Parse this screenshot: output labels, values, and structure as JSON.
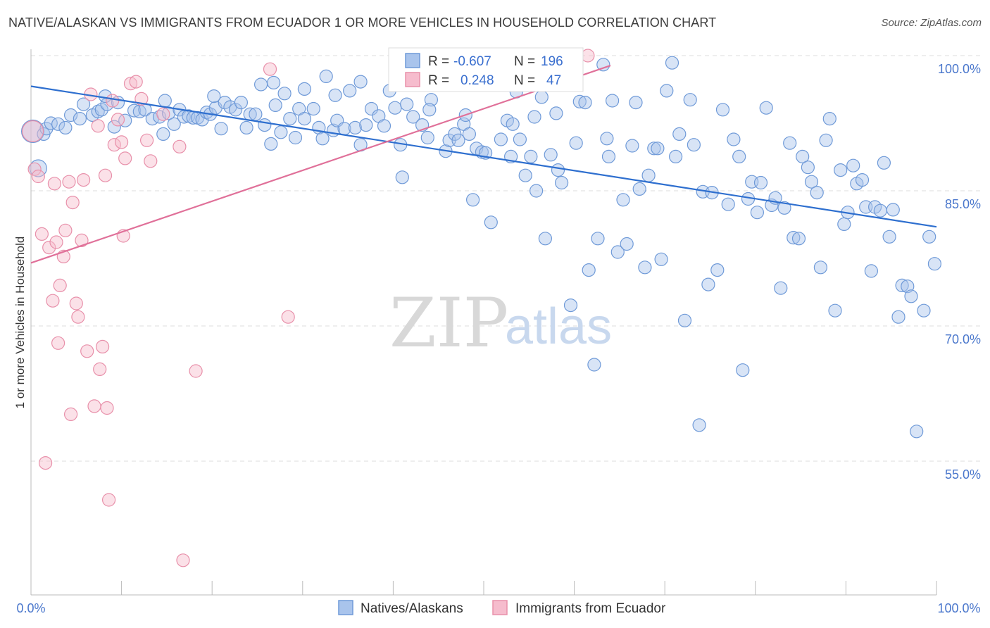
{
  "header": {
    "title": "NATIVE/ALASKAN VS IMMIGRANTS FROM ECUADOR 1 OR MORE VEHICLES IN HOUSEHOLD CORRELATION CHART",
    "source": "Source: ZipAtlas.com"
  },
  "watermark": {
    "zip": "ZIP",
    "atlas": "atlas"
  },
  "stats_legend": {
    "rows": [
      {
        "r_label": "R =",
        "r_value": "-0.607",
        "n_label": "N =",
        "n_value": "196"
      },
      {
        "r_label": "R =",
        "r_value": "0.248",
        "n_label": "N =",
        "n_value": "47"
      }
    ]
  },
  "colors": {
    "blue_fill": "#a9c4ec",
    "blue_stroke": "#6f9ad8",
    "blue_line": "#2e6fcf",
    "pink_fill": "#f6bccd",
    "pink_stroke": "#e890aa",
    "pink_line": "#e07099",
    "grid": "#dddddd",
    "tick_label": "#4a77cc"
  },
  "chart_data": {
    "type": "scatter",
    "title": "NATIVE/ALASKAN VS IMMIGRANTS FROM ECUADOR 1 OR MORE VEHICLES IN HOUSEHOLD CORRELATION CHART",
    "xlabel": "",
    "ylabel": "1 or more Vehicles in Household",
    "xlim": [
      0,
      100
    ],
    "ylim": [
      40,
      102
    ],
    "x_tick_labels": [
      "0.0%",
      "100.0%"
    ],
    "y_ticks": [
      55,
      70,
      85,
      100
    ],
    "y_tick_labels": [
      "55.0%",
      "70.0%",
      "85.0%",
      "100.0%"
    ],
    "grid": true,
    "legend": [
      "Natives/Alaskans",
      "Immigrants from Ecuador"
    ],
    "series": [
      {
        "name": "Natives/Alaskans",
        "color": "#a9c4ec",
        "trendline": {
          "x": [
            0,
            100
          ],
          "y": [
            96.6,
            81.0
          ]
        },
        "points": [
          [
            0.2,
            91.6
          ],
          [
            0.8,
            87.5
          ],
          [
            1.4,
            91.3
          ],
          [
            1.7,
            91.9
          ],
          [
            2.2,
            92.5
          ],
          [
            3.0,
            92.4
          ],
          [
            3.8,
            92.0
          ],
          [
            4.4,
            93.4
          ],
          [
            5.4,
            93.0
          ],
          [
            5.8,
            94.6
          ],
          [
            6.8,
            93.4
          ],
          [
            7.4,
            93.8
          ],
          [
            7.8,
            94.0
          ],
          [
            8.4,
            94.6
          ],
          [
            9.2,
            92.1
          ],
          [
            9.6,
            94.8
          ],
          [
            10.4,
            92.8
          ],
          [
            11.4,
            93.9
          ],
          [
            12.0,
            93.8
          ],
          [
            12.6,
            94.0
          ],
          [
            13.4,
            93.0
          ],
          [
            14.2,
            93.2
          ],
          [
            14.6,
            91.3
          ],
          [
            15.2,
            93.6
          ],
          [
            15.8,
            92.4
          ],
          [
            16.4,
            94.0
          ],
          [
            16.9,
            93.2
          ],
          [
            17.4,
            93.3
          ],
          [
            17.9,
            93.1
          ],
          [
            18.4,
            93.1
          ],
          [
            18.9,
            92.9
          ],
          [
            19.4,
            93.7
          ],
          [
            19.8,
            93.5
          ],
          [
            20.4,
            94.2
          ],
          [
            21.0,
            91.9
          ],
          [
            21.4,
            94.8
          ],
          [
            22.0,
            94.3
          ],
          [
            22.6,
            94.0
          ],
          [
            23.2,
            94.8
          ],
          [
            23.8,
            92.0
          ],
          [
            24.2,
            93.5
          ],
          [
            24.8,
            93.5
          ],
          [
            25.4,
            96.8
          ],
          [
            25.8,
            92.3
          ],
          [
            26.5,
            90.2
          ],
          [
            27.0,
            94.5
          ],
          [
            27.6,
            91.5
          ],
          [
            28.0,
            95.8
          ],
          [
            28.6,
            93.0
          ],
          [
            29.2,
            90.9
          ],
          [
            29.6,
            94.1
          ],
          [
            30.2,
            93.0
          ],
          [
            31.2,
            94.1
          ],
          [
            31.8,
            92.0
          ],
          [
            32.2,
            90.8
          ],
          [
            32.6,
            97.7
          ],
          [
            33.4,
            91.7
          ],
          [
            33.8,
            92.8
          ],
          [
            34.6,
            91.9
          ],
          [
            35.2,
            96.1
          ],
          [
            35.8,
            92.0
          ],
          [
            36.4,
            90.1
          ],
          [
            37.0,
            92.3
          ],
          [
            37.6,
            94.1
          ],
          [
            38.4,
            93.3
          ],
          [
            39.0,
            92.2
          ],
          [
            39.6,
            96.1
          ],
          [
            40.2,
            94.2
          ],
          [
            40.8,
            90.1
          ],
          [
            41.0,
            86.5
          ],
          [
            41.5,
            94.6
          ],
          [
            42.2,
            93.2
          ],
          [
            42.8,
            96.9
          ],
          [
            43.2,
            92.3
          ],
          [
            43.8,
            90.9
          ],
          [
            44.2,
            95.1
          ],
          [
            44.8,
            97.3
          ],
          [
            45.2,
            96.9
          ],
          [
            45.8,
            89.4
          ],
          [
            46.2,
            90.6
          ],
          [
            46.8,
            91.3
          ],
          [
            47.2,
            90.6
          ],
          [
            47.8,
            92.4
          ],
          [
            48.4,
            91.3
          ],
          [
            48.8,
            84.0
          ],
          [
            49.2,
            89.7
          ],
          [
            49.8,
            89.3
          ],
          [
            50.2,
            89.2
          ],
          [
            50.8,
            81.5
          ],
          [
            51.4,
            98.0
          ],
          [
            51.9,
            90.7
          ],
          [
            52.6,
            92.8
          ],
          [
            53.2,
            92.4
          ],
          [
            53.6,
            96.0
          ],
          [
            54.0,
            90.7
          ],
          [
            54.6,
            86.7
          ],
          [
            55.2,
            88.8
          ],
          [
            55.8,
            85.0
          ],
          [
            56.4,
            95.4
          ],
          [
            56.8,
            79.7
          ],
          [
            57.4,
            89.0
          ],
          [
            58.0,
            93.6
          ],
          [
            58.6,
            85.9
          ],
          [
            59.0,
            98.3
          ],
          [
            59.6,
            72.3
          ],
          [
            60.2,
            90.3
          ],
          [
            60.6,
            94.9
          ],
          [
            61.2,
            94.8
          ],
          [
            61.6,
            76.2
          ],
          [
            62.2,
            65.7
          ],
          [
            62.6,
            79.7
          ],
          [
            63.2,
            99.0
          ],
          [
            63.8,
            88.8
          ],
          [
            64.2,
            95.0
          ],
          [
            64.8,
            78.2
          ],
          [
            65.4,
            84.0
          ],
          [
            65.8,
            79.1
          ],
          [
            66.4,
            90.0
          ],
          [
            66.8,
            94.8
          ],
          [
            67.2,
            85.2
          ],
          [
            67.8,
            76.5
          ],
          [
            68.2,
            86.7
          ],
          [
            68.8,
            89.7
          ],
          [
            69.2,
            89.7
          ],
          [
            69.6,
            77.4
          ],
          [
            70.2,
            96.1
          ],
          [
            70.8,
            99.2
          ],
          [
            71.2,
            88.8
          ],
          [
            71.6,
            91.3
          ],
          [
            72.2,
            70.6
          ],
          [
            72.8,
            95.1
          ],
          [
            73.2,
            90.1
          ],
          [
            73.8,
            59.0
          ],
          [
            74.2,
            84.9
          ],
          [
            74.8,
            74.6
          ],
          [
            75.2,
            84.8
          ],
          [
            75.8,
            76.2
          ],
          [
            76.4,
            94.0
          ],
          [
            77.0,
            83.5
          ],
          [
            77.6,
            90.7
          ],
          [
            78.2,
            88.8
          ],
          [
            78.6,
            65.1
          ],
          [
            79.2,
            84.1
          ],
          [
            79.6,
            86.0
          ],
          [
            80.2,
            82.6
          ],
          [
            80.6,
            85.9
          ],
          [
            81.2,
            94.2
          ],
          [
            81.8,
            83.4
          ],
          [
            82.2,
            84.2
          ],
          [
            82.8,
            74.2
          ],
          [
            83.2,
            83.1
          ],
          [
            83.8,
            90.3
          ],
          [
            84.2,
            79.8
          ],
          [
            84.8,
            79.7
          ],
          [
            85.2,
            88.8
          ],
          [
            85.8,
            87.6
          ],
          [
            86.2,
            86.0
          ],
          [
            86.8,
            84.8
          ],
          [
            87.2,
            76.5
          ],
          [
            87.8,
            90.6
          ],
          [
            88.2,
            93.0
          ],
          [
            88.8,
            71.7
          ],
          [
            89.4,
            87.3
          ],
          [
            89.8,
            81.3
          ],
          [
            90.2,
            82.6
          ],
          [
            90.8,
            87.8
          ],
          [
            91.2,
            85.8
          ],
          [
            91.8,
            86.2
          ],
          [
            92.2,
            83.2
          ],
          [
            92.8,
            76.1
          ],
          [
            93.2,
            83.2
          ],
          [
            93.8,
            82.8
          ],
          [
            94.2,
            88.1
          ],
          [
            94.8,
            79.9
          ],
          [
            95.2,
            82.9
          ],
          [
            95.8,
            71.0
          ],
          [
            96.2,
            74.5
          ],
          [
            96.8,
            74.4
          ],
          [
            97.2,
            73.3
          ],
          [
            97.8,
            58.3
          ],
          [
            98.6,
            71.7
          ],
          [
            99.2,
            79.9
          ],
          [
            99.8,
            76.9
          ],
          [
            26.8,
            97.0
          ],
          [
            30.2,
            96.3
          ],
          [
            44.0,
            94.0
          ],
          [
            48.0,
            93.4
          ],
          [
            55.6,
            93.2
          ],
          [
            36.4,
            97.1
          ],
          [
            20.2,
            95.5
          ],
          [
            8.2,
            95.5
          ],
          [
            14.8,
            95.0
          ],
          [
            33.6,
            95.6
          ],
          [
            53.0,
            88.8
          ],
          [
            63.6,
            90.8
          ],
          [
            58.2,
            87.3
          ]
        ]
      },
      {
        "name": "Immigrants from Ecuador",
        "color": "#f6bccd",
        "trendline": {
          "x": [
            0,
            64
          ],
          "y": [
            77.0,
            98.9
          ]
        },
        "points": [
          [
            0.2,
            91.6
          ],
          [
            0.4,
            87.4
          ],
          [
            0.8,
            86.6
          ],
          [
            1.2,
            80.2
          ],
          [
            1.6,
            54.8
          ],
          [
            2.0,
            78.7
          ],
          [
            2.4,
            72.8
          ],
          [
            2.6,
            85.8
          ],
          [
            2.8,
            79.3
          ],
          [
            3.0,
            68.1
          ],
          [
            3.2,
            74.5
          ],
          [
            3.6,
            77.7
          ],
          [
            3.8,
            80.6
          ],
          [
            4.2,
            86.0
          ],
          [
            4.4,
            60.2
          ],
          [
            4.6,
            83.7
          ],
          [
            5.0,
            72.5
          ],
          [
            5.2,
            71.0
          ],
          [
            5.6,
            79.5
          ],
          [
            5.8,
            86.2
          ],
          [
            6.2,
            67.2
          ],
          [
            6.6,
            95.7
          ],
          [
            7.0,
            61.1
          ],
          [
            7.4,
            92.2
          ],
          [
            7.6,
            65.2
          ],
          [
            7.9,
            67.7
          ],
          [
            8.2,
            86.7
          ],
          [
            8.4,
            60.9
          ],
          [
            8.6,
            50.7
          ],
          [
            9.0,
            95.0
          ],
          [
            9.2,
            90.1
          ],
          [
            9.6,
            92.9
          ],
          [
            10.0,
            90.4
          ],
          [
            10.2,
            80.0
          ],
          [
            10.4,
            88.6
          ],
          [
            11.0,
            96.9
          ],
          [
            11.6,
            97.1
          ],
          [
            12.2,
            95.2
          ],
          [
            12.8,
            90.6
          ],
          [
            13.2,
            88.3
          ],
          [
            14.6,
            93.5
          ],
          [
            16.4,
            89.9
          ],
          [
            16.8,
            44.0
          ],
          [
            18.2,
            65.0
          ],
          [
            26.4,
            98.5
          ],
          [
            28.4,
            71.0
          ],
          [
            61.5,
            100.0
          ]
        ]
      }
    ]
  },
  "bottom_legend": {
    "items": [
      {
        "label": "Natives/Alaskans"
      },
      {
        "label": "Immigrants from Ecuador"
      }
    ]
  }
}
